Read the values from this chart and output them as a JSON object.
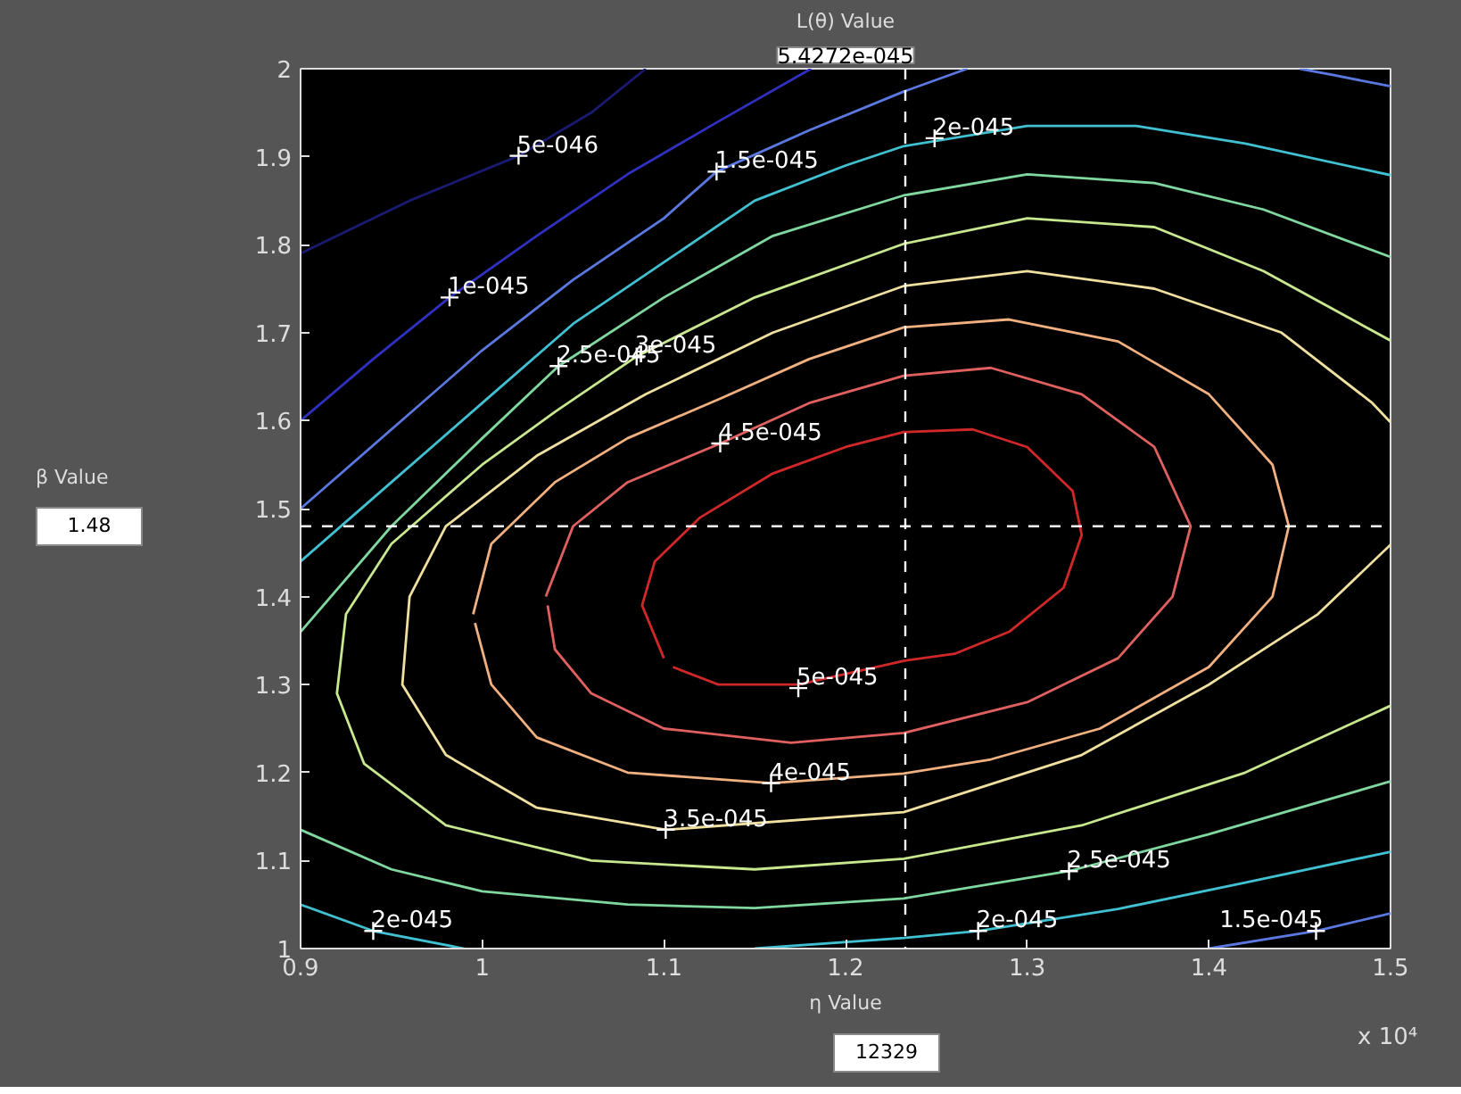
{
  "chart_data": {
    "type": "line",
    "title": "L(θ) Value",
    "subtitle": "5.4272e-045",
    "xlabel": "η Value",
    "xlim": [
      0.9,
      1.5
    ],
    "ylim": [
      1,
      2
    ],
    "xticks": [
      0.9,
      1,
      1.1,
      1.2,
      1.3,
      1.4,
      1.5
    ],
    "yticks": [
      1,
      1.1,
      1.2,
      1.3,
      1.4,
      1.5,
      1.6,
      1.7,
      1.8,
      1.9,
      2
    ],
    "series": [
      {
        "color": "#1a1a70",
        "x": [
          0.9,
          0.96,
          1.02,
          1.06,
          1.09
        ],
        "values": [
          1.79,
          1.85,
          1.901,
          1.95,
          2.0
        ]
      },
      {
        "color": "#3030c0",
        "x": [
          0.9,
          0.94,
          0.982,
          1.03,
          1.08,
          1.13,
          1.181
        ],
        "values": [
          1.6,
          1.67,
          1.74,
          1.81,
          1.88,
          1.94,
          2.0
        ]
      },
      {
        "color": "#5a78e0",
        "x": [
          0.9,
          0.95,
          1.0,
          1.05,
          1.1,
          1.129,
          1.18,
          1.232,
          1.267,
          null,
          1.45,
          1.468,
          1.5,
          null,
          1.4,
          1.459,
          1.5
        ],
        "values": [
          1.5,
          1.59,
          1.68,
          1.76,
          1.83,
          1.883,
          1.93,
          1.974,
          2.0,
          null,
          2.0,
          1.993,
          1.98,
          null,
          1.0,
          1.02,
          1.04
        ]
      },
      {
        "color": "#40c0d0",
        "x": [
          0.9,
          0.95,
          1.0,
          1.05,
          1.1,
          1.15,
          1.2,
          1.232,
          1.3,
          1.36,
          1.42,
          1.5,
          null,
          0.9,
          0.94,
          0.99,
          null,
          1.15,
          1.232,
          1.273,
          1.35,
          1.42,
          1.5
        ],
        "values": [
          1.44,
          1.53,
          1.62,
          1.71,
          1.78,
          1.85,
          1.89,
          1.912,
          1.935,
          1.935,
          1.915,
          1.879,
          null,
          1.05,
          1.02,
          1.0,
          null,
          1.0,
          1.012,
          1.02,
          1.045,
          1.075,
          1.11
        ]
      },
      {
        "color": "#80d8a0",
        "x": [
          0.9,
          0.95,
          1.0,
          1.042,
          1.1,
          1.16,
          1.232,
          1.3,
          1.37,
          1.43,
          1.5,
          null,
          0.9,
          0.95,
          1.0,
          1.08,
          1.15,
          1.232,
          1.323,
          1.4,
          1.5
        ],
        "values": [
          1.36,
          1.48,
          1.58,
          1.662,
          1.74,
          1.81,
          1.856,
          1.88,
          1.87,
          1.84,
          1.786,
          null,
          1.135,
          1.09,
          1.065,
          1.05,
          1.046,
          1.057,
          1.088,
          1.13,
          1.19
        ]
      },
      {
        "color": "#c8e890",
        "x": [
          1.5,
          1.42,
          1.33,
          1.232,
          1.15,
          1.06,
          0.98,
          0.935,
          0.92,
          0.925,
          0.95,
          1.0,
          1.04,
          1.085,
          1.15,
          1.232,
          1.3,
          1.37,
          1.43,
          1.5
        ],
        "values": [
          1.276,
          1.2,
          1.14,
          1.102,
          1.09,
          1.1,
          1.14,
          1.21,
          1.29,
          1.38,
          1.46,
          1.55,
          1.61,
          1.673,
          1.74,
          1.801,
          1.83,
          1.82,
          1.77,
          1.691
        ]
      },
      {
        "color": "#f0e0a0",
        "x": [
          1.5,
          1.46,
          1.4,
          1.33,
          1.232,
          1.101,
          1.03,
          0.98,
          0.956,
          0.96,
          0.98,
          1.03,
          1.09,
          1.16,
          1.232,
          1.3,
          1.37,
          1.44,
          1.49,
          1.5
        ],
        "values": [
          1.459,
          1.38,
          1.3,
          1.22,
          1.155,
          1.135,
          1.16,
          1.22,
          1.3,
          1.4,
          1.48,
          1.56,
          1.63,
          1.7,
          1.753,
          1.77,
          1.75,
          1.7,
          1.62,
          1.598
        ]
      },
      {
        "color": "#f0b080",
        "x": [
          0.995,
          1.005,
          1.04,
          1.08,
          1.131,
          1.18,
          1.232,
          1.29,
          1.35,
          1.4,
          1.435,
          1.444,
          1.435,
          1.4,
          1.34,
          1.28,
          1.232,
          1.159,
          1.08,
          1.03,
          1.005,
          0.996
        ],
        "values": [
          1.38,
          1.46,
          1.53,
          1.58,
          1.625,
          1.67,
          1.706,
          1.715,
          1.69,
          1.63,
          1.55,
          1.48,
          1.4,
          1.32,
          1.25,
          1.215,
          1.199,
          1.188,
          1.2,
          1.24,
          1.3,
          1.37
        ]
      },
      {
        "color": "#e06060",
        "x": [
          1.035,
          1.05,
          1.08,
          1.131,
          1.18,
          1.232,
          1.28,
          1.33,
          1.37,
          1.39,
          1.38,
          1.35,
          1.3,
          1.232,
          1.17,
          1.1,
          1.06,
          1.04,
          1.036
        ],
        "values": [
          1.4,
          1.48,
          1.53,
          1.574,
          1.62,
          1.651,
          1.66,
          1.63,
          1.57,
          1.48,
          1.4,
          1.33,
          1.28,
          1.245,
          1.234,
          1.25,
          1.29,
          1.34,
          1.39
        ]
      },
      {
        "color": "#d02828",
        "x": [
          1.1,
          1.088,
          1.095,
          1.12,
          1.16,
          1.2,
          1.232,
          1.27,
          1.3,
          1.325,
          1.33,
          1.32,
          1.29,
          1.26,
          1.232,
          1.174,
          1.13,
          1.105
        ],
        "values": [
          1.33,
          1.39,
          1.44,
          1.49,
          1.54,
          1.57,
          1.587,
          1.59,
          1.57,
          1.52,
          1.47,
          1.41,
          1.36,
          1.335,
          1.327,
          1.3,
          1.3,
          1.32
        ]
      }
    ],
    "ref_lines": [
      {
        "axis": "y",
        "value": 1.48,
        "color": "#ffffff",
        "line_style": "dashed"
      },
      {
        "axis": "x",
        "value": 1.2329,
        "color": "#ffffff",
        "line_style": "dashed"
      }
    ],
    "annotations": [
      {
        "text": "5e-046",
        "x": 1.02,
        "y": 1.901
      },
      {
        "text": "1.5e-045",
        "x": 1.129,
        "y": 1.883
      },
      {
        "text": "1e-045",
        "x": 0.982,
        "y": 1.74
      },
      {
        "text": "2.5e-045",
        "x": 1.042,
        "y": 1.662
      },
      {
        "text": "3e-045",
        "x": 1.085,
        "y": 1.673
      },
      {
        "text": "4.5e-045",
        "x": 1.131,
        "y": 1.574
      },
      {
        "text": "2e-045",
        "x": 1.249,
        "y": 1.921
      },
      {
        "text": "5e-045",
        "x": 1.174,
        "y": 1.296
      },
      {
        "text": "4e-045",
        "x": 1.159,
        "y": 1.188
      },
      {
        "text": "3.5e-045",
        "x": 1.101,
        "y": 1.135
      },
      {
        "text": "2e-045",
        "x": 0.94,
        "y": 1.02
      },
      {
        "text": "2.5e-045",
        "x": 1.323,
        "y": 1.088
      },
      {
        "text": "2e-045",
        "x": 1.273,
        "y": 1.02
      },
      {
        "text": "1.5e-045",
        "x": 1.459,
        "y": 1.02
      },
      "β Value",
      "1.48",
      "12329",
      "x 10⁴"
    ]
  }
}
